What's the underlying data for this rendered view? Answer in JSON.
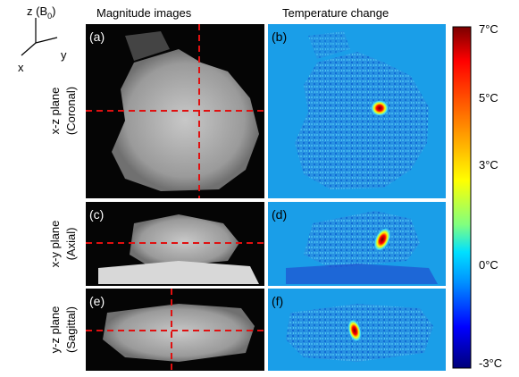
{
  "axes_glyph": {
    "z_label": [
      "z (B",
      "0",
      ")"
    ],
    "y_label": "y",
    "x_label": "x"
  },
  "headers": {
    "magnitude": "Magnitude images",
    "temperature": "Temperature change"
  },
  "rows": [
    {
      "plane": "x-z plane",
      "view": "(Coronal)",
      "panels": [
        "(a)",
        "(b)"
      ]
    },
    {
      "plane": "x-y plane",
      "view": "(Axial)",
      "panels": [
        "(c)",
        "(d)"
      ]
    },
    {
      "plane": "y-z plane",
      "view": "(Sagittal)",
      "panels": [
        "(e)",
        "(f)"
      ]
    }
  ],
  "colorbar": {
    "labels": [
      "7°C",
      "5°C",
      "3°C",
      "0°C",
      "-3°C"
    ]
  }
}
